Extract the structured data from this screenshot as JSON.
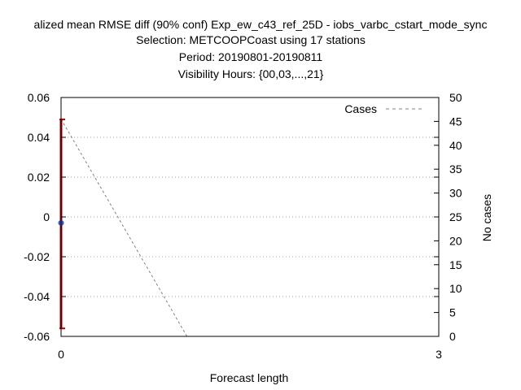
{
  "chart_data": {
    "type": "line",
    "title": "alized mean RMSE diff (90% conf) Exp_ew_c43_ref_25D - iobs_varbc_cstart_mode_sync",
    "subtitle_lines": [
      "Selection: METCOOPCoast using    17 stations",
      "Period: 20190801-20190811",
      "Visibility   Hours: {00,03,...,21}"
    ],
    "xlabel": "Forecast length",
    "ylabel": "",
    "y2label": "No cases",
    "xlim": [
      0,
      3
    ],
    "ylim": [
      -0.06,
      0.06
    ],
    "y2lim": [
      0,
      50
    ],
    "x_ticks": [
      "0",
      "3"
    ],
    "y_ticks": [
      "0.06",
      "0.04",
      "0.02",
      "0",
      "-0.02",
      "-0.04",
      "-0.06"
    ],
    "y2_ticks": [
      "50",
      "45",
      "40",
      "35",
      "30",
      "25",
      "20",
      "15",
      "10",
      "5",
      "0"
    ],
    "grid": true,
    "legend": {
      "position": "top-right",
      "entries": [
        "Cases"
      ]
    },
    "series": [
      {
        "name": "Cases",
        "axis": "y2",
        "style": "dashed",
        "color": "#808080",
        "x": [
          0,
          1,
          2,
          3
        ],
        "y": [
          45.5,
          0,
          0,
          0
        ]
      }
    ],
    "error_bars": [
      {
        "x": 0,
        "mean": -0.003,
        "low": -0.056,
        "high": 0.049,
        "color": "#c00000",
        "point_color": "#3050c0"
      }
    ]
  }
}
